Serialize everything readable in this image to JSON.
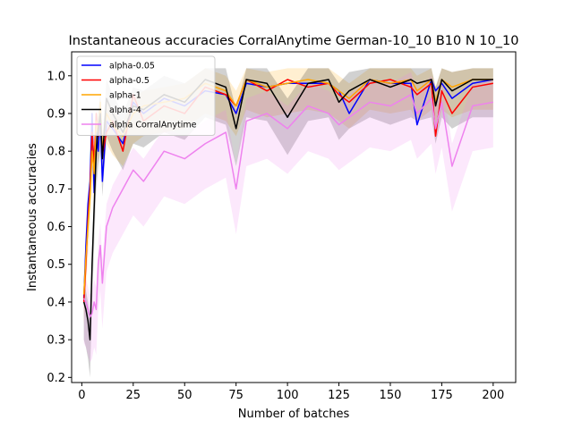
{
  "chart_data": {
    "type": "line",
    "title": "Instantaneous accuracies CorralAnytime German-10_10 B10 N 10_10",
    "xlabel": "Number of batches",
    "ylabel": "Instantaneous accuracies",
    "xlim": [
      -4.95,
      210.95
    ],
    "ylim": [
      0.1865,
      1.0635
    ],
    "xticks": [
      0,
      25,
      50,
      75,
      100,
      125,
      150,
      175,
      200
    ],
    "yticks": [
      0.2,
      0.3,
      0.4,
      0.5,
      0.6,
      0.7,
      0.8,
      0.9,
      1.0
    ],
    "xtick_labels": [
      "0",
      "25",
      "50",
      "75",
      "100",
      "125",
      "150",
      "175",
      "200"
    ],
    "ytick_labels": [
      "0.2",
      "0.3",
      "0.4",
      "0.5",
      "0.6",
      "0.7",
      "0.8",
      "0.9",
      "1.0"
    ],
    "grid": false,
    "legend_position": "top-left",
    "x": [
      1,
      2,
      3,
      4,
      5,
      6,
      7,
      8,
      9,
      10,
      12,
      15,
      20,
      25,
      30,
      40,
      50,
      60,
      70,
      75,
      80,
      90,
      100,
      110,
      120,
      125,
      130,
      140,
      150,
      160,
      163,
      170,
      172,
      175,
      180,
      190,
      200
    ],
    "series": [
      {
        "name": "alpha-0.05",
        "color": "#0000ff",
        "band": false,
        "values": [
          0.41,
          0.55,
          0.66,
          0.72,
          0.9,
          0.69,
          0.85,
          0.8,
          0.9,
          0.72,
          0.88,
          0.86,
          0.82,
          0.93,
          0.9,
          0.94,
          0.92,
          0.96,
          0.95,
          0.9,
          0.98,
          0.97,
          0.98,
          0.98,
          0.98,
          0.96,
          0.9,
          0.99,
          0.98,
          0.98,
          0.87,
          0.99,
          0.96,
          0.98,
          0.94,
          0.98,
          0.99
        ]
      },
      {
        "name": "alpha-0.5",
        "color": "#ff0000",
        "band": false,
        "values": [
          0.4,
          0.5,
          0.62,
          0.7,
          0.85,
          0.77,
          0.9,
          0.84,
          0.92,
          0.79,
          0.85,
          0.88,
          0.8,
          0.95,
          0.88,
          0.92,
          0.9,
          0.97,
          0.95,
          0.92,
          0.99,
          0.96,
          0.99,
          0.97,
          0.98,
          0.95,
          0.93,
          0.98,
          0.99,
          0.97,
          0.95,
          0.98,
          0.84,
          0.96,
          0.9,
          0.97,
          0.98
        ]
      },
      {
        "name": "alpha-1",
        "color": "#ffa500",
        "band": true,
        "values": [
          0.42,
          0.52,
          0.6,
          0.68,
          0.8,
          0.74,
          0.88,
          0.85,
          0.93,
          0.8,
          0.9,
          0.87,
          0.84,
          0.9,
          0.92,
          0.93,
          0.94,
          0.98,
          0.96,
          0.92,
          0.99,
          0.97,
          0.98,
          0.99,
          0.98,
          0.96,
          0.94,
          0.99,
          0.98,
          0.99,
          0.96,
          0.99,
          0.93,
          0.99,
          0.97,
          0.99,
          0.99
        ]
      },
      {
        "name": "alpha-4",
        "color": "#000000",
        "band": true,
        "values": [
          0.4,
          0.38,
          0.35,
          0.3,
          0.5,
          0.65,
          0.8,
          0.86,
          0.9,
          0.78,
          0.94,
          0.9,
          0.85,
          0.92,
          0.91,
          0.95,
          0.93,
          0.99,
          0.97,
          0.86,
          0.99,
          0.98,
          0.89,
          0.98,
          0.99,
          0.93,
          0.96,
          0.99,
          0.97,
          0.99,
          0.98,
          0.99,
          0.92,
          0.99,
          0.96,
          0.99,
          0.99
        ]
      },
      {
        "name": "alpha CorralAnytime",
        "color": "#ee82ee",
        "band": true,
        "values": [
          0.41,
          0.4,
          0.38,
          0.36,
          0.37,
          0.4,
          0.38,
          0.5,
          0.55,
          0.45,
          0.6,
          0.65,
          0.7,
          0.75,
          0.72,
          0.8,
          0.78,
          0.82,
          0.85,
          0.7,
          0.88,
          0.9,
          0.86,
          0.92,
          0.9,
          0.87,
          0.89,
          0.93,
          0.92,
          0.95,
          0.9,
          0.94,
          0.86,
          0.93,
          0.76,
          0.92,
          0.93
        ]
      }
    ]
  }
}
